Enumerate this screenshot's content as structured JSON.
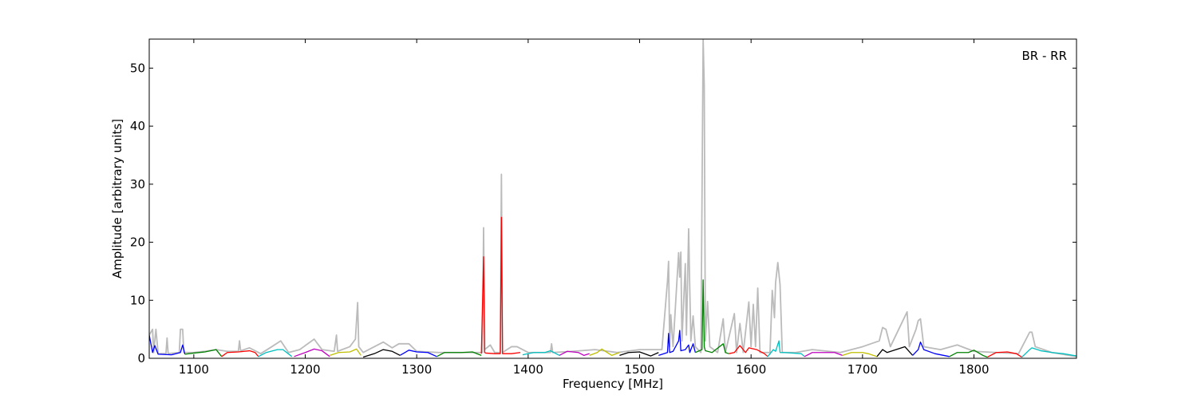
{
  "chart_data": {
    "type": "line",
    "annotation": "BR - RR",
    "xlabel": "Frequency [MHz]",
    "ylabel": "Amplitude [arbitrary units]",
    "xlim": [
      1060,
      1892
    ],
    "ylim": [
      0,
      55
    ],
    "xticks": [
      1100,
      1200,
      1300,
      1400,
      1500,
      1600,
      1700,
      1800
    ],
    "yticks": [
      0,
      10,
      20,
      30,
      40,
      50
    ],
    "grid": false,
    "series": [
      {
        "color": "#bbbbbb",
        "x": [
          1060,
          1063,
          1064,
          1066,
          1068,
          1075,
          1076,
          1077,
          1087,
          1088,
          1090,
          1091,
          1100,
          1110,
          1120,
          1130,
          1140,
          1141,
          1142,
          1150,
          1160,
          1170,
          1178,
          1185,
          1195,
          1208,
          1215,
          1226,
          1228,
          1229,
          1240,
          1245,
          1247,
          1248,
          1252,
          1262,
          1270,
          1278,
          1284,
          1293,
          1300,
          1320,
          1340,
          1359,
          1360,
          1361,
          1366,
          1370,
          1375,
          1376,
          1377,
          1385,
          1390,
          1400,
          1420,
          1421,
          1422,
          1440,
          1460,
          1480,
          1500,
          1520,
          1525,
          1526,
          1527,
          1528,
          1530,
          1535,
          1536,
          1537,
          1538,
          1541,
          1542,
          1544,
          1545,
          1546,
          1548,
          1550,
          1555,
          1557,
          1558,
          1559,
          1561,
          1563,
          1570,
          1575,
          1577,
          1585,
          1587,
          1590,
          1593,
          1598,
          1600,
          1602,
          1604,
          1606,
          1608,
          1617,
          1619,
          1621,
          1622,
          1624,
          1626,
          1628,
          1640,
          1655,
          1680,
          1700,
          1715,
          1718,
          1721,
          1725,
          1740,
          1742,
          1748,
          1750,
          1752,
          1755,
          1770,
          1785,
          1800,
          1820,
          1840,
          1850,
          1852,
          1855,
          1870,
          1892
        ],
        "values": [
          4,
          5,
          1,
          5,
          0.8,
          0.8,
          3.5,
          0.8,
          1,
          5,
          5,
          1,
          1,
          1.2,
          1.5,
          1.2,
          1.2,
          3,
          1.3,
          1.8,
          0.8,
          2,
          3,
          1,
          1.5,
          3.3,
          1.5,
          1.2,
          4,
          1.2,
          2,
          3.3,
          9.6,
          2,
          1,
          2,
          2.8,
          1.8,
          2.5,
          2.5,
          1.2,
          1,
          1,
          1,
          22.5,
          1.5,
          2.3,
          1,
          1,
          31.7,
          1,
          2,
          2,
          1,
          1,
          2.5,
          1,
          1.2,
          1.5,
          1,
          1.5,
          1.5,
          13.3,
          16.7,
          2,
          7.5,
          2,
          18.2,
          14,
          18.3,
          3,
          16.3,
          4,
          22.3,
          12,
          3,
          7.3,
          2,
          1,
          55,
          47,
          3,
          9.8,
          2,
          1,
          6.8,
          1,
          7.7,
          1,
          6,
          1,
          9.7,
          2,
          9.3,
          2,
          12.1,
          1,
          1,
          11.7,
          7,
          13,
          16.5,
          12.7,
          1,
          1,
          1.5,
          1,
          2,
          3,
          5.3,
          5,
          2,
          8,
          2,
          5,
          6.5,
          6.8,
          2,
          1.5,
          2.3,
          1.2,
          1,
          0.8,
          4.5,
          4.5,
          2,
          1,
          0.3
        ]
      },
      {
        "color": "#0000ff",
        "x": [
          1060,
          1063,
          1065,
          1068,
          1080,
          1088,
          1090,
          1092
        ],
        "values": [
          4,
          1,
          2.2,
          0.7,
          0.6,
          1,
          2.3,
          0.7
        ]
      },
      {
        "color": "#008000",
        "x": [
          1092,
          1100,
          1110,
          1120,
          1125
        ],
        "values": [
          0.7,
          0.9,
          1.1,
          1.5,
          0.3
        ]
      },
      {
        "color": "#ff0000",
        "x": [
          1125,
          1130,
          1140,
          1150,
          1155,
          1158
        ],
        "values": [
          0.3,
          1,
          1.1,
          1.3,
          1,
          0.3
        ]
      },
      {
        "color": "#00bfbf",
        "x": [
          1158,
          1165,
          1175,
          1180,
          1188
        ],
        "values": [
          0.3,
          1,
          1.5,
          1.5,
          0.3
        ]
      },
      {
        "color": "#bf00bf",
        "x": [
          1190,
          1200,
          1208,
          1215,
          1222
        ],
        "values": [
          0.3,
          1,
          1.6,
          1.3,
          0.3
        ]
      },
      {
        "color": "#bfbf00",
        "x": [
          1222,
          1230,
          1240,
          1246,
          1250
        ],
        "values": [
          0.5,
          1,
          1.1,
          1.6,
          0.5
        ]
      },
      {
        "color": "#000000",
        "x": [
          1252,
          1262,
          1270,
          1278,
          1285
        ],
        "values": [
          0.2,
          0.8,
          1.5,
          1.2,
          0.5
        ]
      },
      {
        "color": "#0000ff",
        "x": [
          1285,
          1293,
          1300,
          1310,
          1318
        ],
        "values": [
          0.5,
          1.4,
          1.1,
          1,
          0.3
        ]
      },
      {
        "color": "#008000",
        "x": [
          1318,
          1325,
          1340,
          1350,
          1358
        ],
        "values": [
          0.3,
          1,
          1,
          1.1,
          0.5
        ]
      },
      {
        "color": "#ff0000",
        "x": [
          1358,
          1360,
          1361,
          1362,
          1370,
          1375,
          1376,
          1377,
          1385,
          1393
        ],
        "values": [
          0.8,
          17.5,
          1,
          0.9,
          0.8,
          0.8,
          24.3,
          0.8,
          0.8,
          1
        ]
      },
      {
        "color": "#00bfbf",
        "x": [
          1395,
          1405,
          1415,
          1420,
          1428
        ],
        "values": [
          0.6,
          1,
          1,
          1.3,
          0.5
        ]
      },
      {
        "color": "#bf00bf",
        "x": [
          1428,
          1435,
          1445,
          1450,
          1455
        ],
        "values": [
          0.5,
          1.2,
          1,
          0.5,
          0.8
        ]
      },
      {
        "color": "#bfbf00",
        "x": [
          1455,
          1462,
          1466,
          1475,
          1482
        ],
        "values": [
          0.5,
          1,
          1.6,
          0.5,
          1
        ]
      },
      {
        "color": "#000000",
        "x": [
          1482,
          1490,
          1500,
          1510,
          1517
        ],
        "values": [
          0.5,
          1,
          1.1,
          0.4,
          1
        ]
      },
      {
        "color": "#0000ff",
        "x": [
          1517,
          1525,
          1526,
          1527,
          1530,
          1535,
          1536,
          1537,
          1541,
          1544,
          1545,
          1548,
          1550
        ],
        "values": [
          0.5,
          1,
          4.3,
          1,
          1.2,
          3,
          4.8,
          1.3,
          1.5,
          2.3,
          1,
          2.5,
          1
        ]
      },
      {
        "color": "#008000",
        "x": [
          1550,
          1556,
          1557,
          1558,
          1559,
          1565,
          1575,
          1577,
          1580
        ],
        "values": [
          1,
          1.5,
          13.5,
          2,
          1.3,
          1,
          2.5,
          1,
          0.8
        ]
      },
      {
        "color": "#ff0000",
        "x": [
          1580,
          1585,
          1590,
          1595,
          1598,
          1605,
          1612,
          1615
        ],
        "values": [
          0.8,
          1,
          2.2,
          1,
          1.8,
          1.5,
          0.8,
          0.3
        ]
      },
      {
        "color": "#00bfbf",
        "x": [
          1615,
          1620,
          1622,
          1625,
          1626,
          1630,
          1645,
          1648
        ],
        "values": [
          0.3,
          1.5,
          1.2,
          3,
          1,
          1,
          0.8,
          0.3
        ]
      },
      {
        "color": "#bf00bf",
        "x": [
          1648,
          1655,
          1665,
          1675,
          1682
        ],
        "values": [
          0.3,
          1,
          1,
          1,
          0.5
        ]
      },
      {
        "color": "#bfbf00",
        "x": [
          1682,
          1690,
          1700,
          1705,
          1713
        ],
        "values": [
          0.5,
          1,
          1,
          0.8,
          0.3
        ]
      },
      {
        "color": "#000000",
        "x": [
          1713,
          1718,
          1722,
          1730,
          1738,
          1745
        ],
        "values": [
          0.3,
          1.5,
          1,
          1.5,
          2,
          0.5
        ]
      },
      {
        "color": "#0000ff",
        "x": [
          1745,
          1750,
          1752,
          1755,
          1765,
          1778
        ],
        "values": [
          0.5,
          1.5,
          2.8,
          1.5,
          0.8,
          0.3
        ]
      },
      {
        "color": "#008000",
        "x": [
          1778,
          1785,
          1795,
          1800,
          1808,
          1812
        ],
        "values": [
          0.3,
          1,
          1,
          1.4,
          0.5,
          0.2
        ]
      },
      {
        "color": "#ff0000",
        "x": [
          1812,
          1820,
          1830,
          1838,
          1843
        ],
        "values": [
          0.2,
          1,
          1.1,
          0.8,
          0.2
        ]
      },
      {
        "color": "#00bfbf",
        "x": [
          1843,
          1850,
          1852,
          1860,
          1870,
          1880,
          1892
        ],
        "values": [
          0.2,
          1.5,
          1.8,
          1.3,
          1,
          0.8,
          0.4
        ]
      }
    ]
  }
}
